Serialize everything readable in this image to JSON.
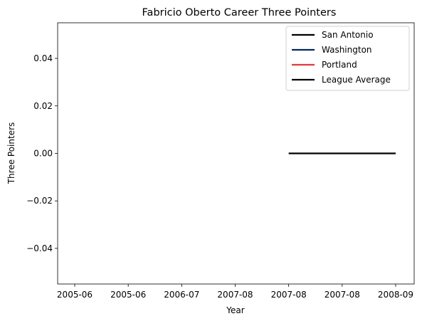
{
  "chart_data": {
    "type": "line",
    "title": "Fabricio Oberto Career Three Pointers",
    "xlabel": "Year",
    "ylabel": "Three Pointers",
    "x_ticks": [
      "2005-06",
      "2005-06",
      "2006-07",
      "2007-08",
      "2007-08",
      "2007-08",
      "2008-09"
    ],
    "y_ticks": [
      "−0.04",
      "−0.02",
      "0.00",
      "0.02",
      "0.04"
    ],
    "y_tick_values": [
      -0.04,
      -0.02,
      0.0,
      0.02,
      0.04
    ],
    "ylim": [
      -0.055,
      0.055
    ],
    "x_range": [
      0,
      6
    ],
    "legend_position": "top-right",
    "grid": false,
    "series": [
      {
        "name": "San Antonio",
        "color": "#000000",
        "x": [],
        "y": []
      },
      {
        "name": "Washington",
        "color": "#002B5C",
        "x": [],
        "y": []
      },
      {
        "name": "Portland",
        "color": "#E03A3E",
        "x": [],
        "y": []
      },
      {
        "name": "League Average",
        "color": "#000000",
        "x": [
          4,
          6
        ],
        "y": [
          0,
          0
        ]
      }
    ]
  }
}
